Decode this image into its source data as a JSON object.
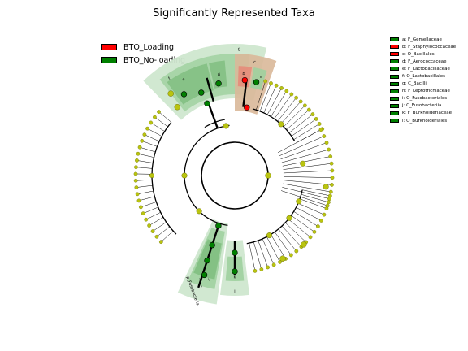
{
  "title": "Significantly Represented Taxa",
  "colors": {
    "loading": "#ff0000",
    "no_loading": "#008000",
    "node_yellow": "#b9c40f",
    "clade_green_light": "#cfe7cf",
    "clade_green_mid": "#9ed09e",
    "clade_green_dark": "#7ebd7e",
    "clade_tan": "#d9b899",
    "clade_red": "#e58c7a"
  },
  "group_legend": [
    {
      "label": "BTO_Loading",
      "color": "#ff0000"
    },
    {
      "label": "BTO_No-loading",
      "color": "#008000"
    }
  ],
  "taxa_legend": [
    {
      "label": "a: F_Gemellaceae",
      "color": "#008000"
    },
    {
      "label": "b: F_Staphylococcaceae",
      "color": "#ff0000"
    },
    {
      "label": "c: O_Bacillales",
      "color": "#ff0000"
    },
    {
      "label": "d: F_Aerococcaceae",
      "color": "#008000"
    },
    {
      "label": "e: F_Lactobacillaceae",
      "color": "#008000"
    },
    {
      "label": "f: O_Lactobacillales",
      "color": "#008000"
    },
    {
      "label": "g: C_Bacilli",
      "color": "#008000"
    },
    {
      "label": "h: F_Leptotrichiaceae",
      "color": "#008000"
    },
    {
      "label": "i: O_Fusobacteriales",
      "color": "#008000"
    },
    {
      "label": "j: C_Fusobacteriia",
      "color": "#008000"
    },
    {
      "label": "k: F_Burkholderiaceae",
      "color": "#008000"
    },
    {
      "label": "l: O_Burkholderiales",
      "color": "#008000"
    }
  ],
  "clade_labels": {
    "a": "a",
    "b": "b",
    "c": "c",
    "d": "d",
    "e": "e",
    "f": "f",
    "g": "g",
    "h": "h",
    "i": "i",
    "j": "j",
    "k": "k",
    "l": "l",
    "phylum_fusobacteria": "p_Fusobacteria"
  }
}
